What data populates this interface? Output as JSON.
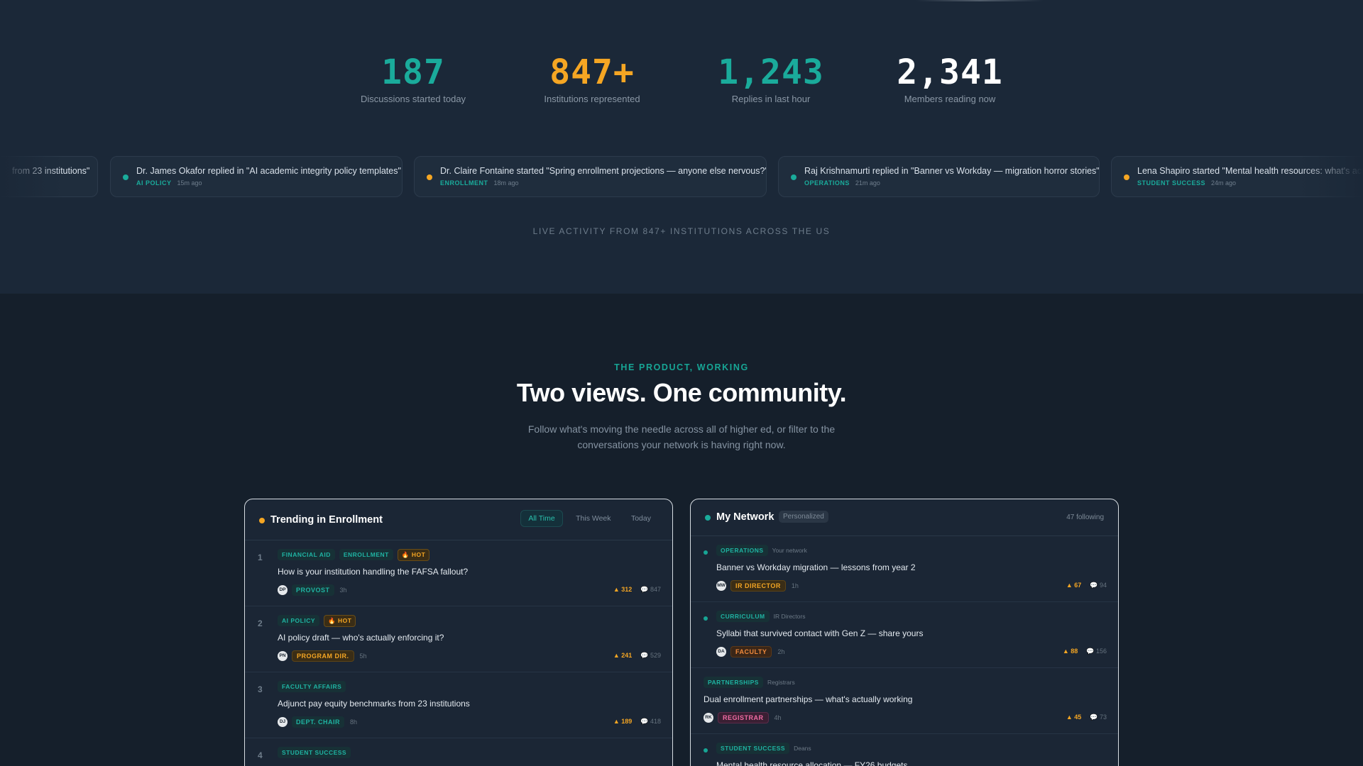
{
  "stats": [
    {
      "value": "187",
      "label": "Discussions started today",
      "color": "#1aab9b"
    },
    {
      "value": "847+",
      "label": "Institutions represented",
      "color": "#f5a623"
    },
    {
      "value": "1,243",
      "label": "Replies in last hour",
      "color": "#1aab9b"
    },
    {
      "value": "2,341",
      "label": "Members reading now",
      "color": "#ffffff"
    }
  ],
  "ticker": [
    {
      "text": "from 23 institutions\"",
      "category": "",
      "time": "",
      "dot": ""
    },
    {
      "text": "Dr. James Okafor replied in \"AI academic integrity policy templates\"",
      "category": "AI POLICY",
      "time": "15m ago",
      "dot": "#1aab9b"
    },
    {
      "text": "Dr. Claire Fontaine started \"Spring enrollment projections — anyone else nervous?\"",
      "category": "ENROLLMENT",
      "time": "18m ago",
      "dot": "#f5a623"
    },
    {
      "text": "Raj Krishnamurti replied in \"Banner vs Workday — migration horror stories\"",
      "category": "OPERATIONS",
      "time": "21m ago",
      "dot": "#1aab9b"
    },
    {
      "text": "Lena Shapiro started \"Mental health resources: what's acti",
      "category": "STUDENT SUCCESS",
      "time": "24m ago",
      "dot": "#f5a623"
    }
  ],
  "live_caption": "LIVE ACTIVITY FROM 847+ INSTITUTIONS ACROSS THE US",
  "section": {
    "eyebrow": "THE PRODUCT, WORKING",
    "headline": "Two views. One community.",
    "subtext": "Follow what's moving the needle across all of higher ed, or filter to the conversations your network is having right now."
  },
  "trending": {
    "title": "Trending in Enrollment",
    "tabs": [
      "All Time",
      "This Week",
      "Today"
    ],
    "active_tab": "All Time",
    "items": [
      {
        "rank": "1",
        "tags": [
          "FINANCIAL AID",
          "ENROLLMENT"
        ],
        "hot": "🔥 HOT",
        "title": "How is your institution handling the FAFSA fallout?",
        "initials": "DP",
        "role": "PROVOST",
        "role_style": "teal",
        "time": "3h",
        "upvotes": "▲ 312",
        "comments": "💬 847"
      },
      {
        "rank": "2",
        "tags": [
          "AI POLICY"
        ],
        "hot": "🔥 HOT",
        "title": "AI policy draft — who's actually enforcing it?",
        "initials": "PN",
        "role": "PROGRAM DIR.",
        "role_style": "amber",
        "time": "5h",
        "upvotes": "▲ 241",
        "comments": "💬 529"
      },
      {
        "rank": "3",
        "tags": [
          "FACULTY AFFAIRS"
        ],
        "hot": "",
        "title": "Adjunct pay equity benchmarks from 23 institutions",
        "initials": "DJ",
        "role": "DEPT. CHAIR",
        "role_style": "teal",
        "time": "8h",
        "upvotes": "▲ 189",
        "comments": "💬 418"
      },
      {
        "rank": "4",
        "tags": [
          "STUDENT SUCCESS"
        ],
        "hot": "",
        "title": "",
        "initials": "",
        "role": "",
        "role_style": "teal",
        "time": "",
        "upvotes": "",
        "comments": ""
      }
    ]
  },
  "network": {
    "title": "My Network",
    "badge": "Personalized",
    "following": "47 following",
    "items": [
      {
        "unread": true,
        "tag": "OPERATIONS",
        "source": "Your network",
        "title": "Banner vs Workday migration — lessons from year 2",
        "initials": "MW",
        "role": "IR DIRECTOR",
        "role_style": "amber",
        "time": "1h",
        "upvotes": "▲ 67",
        "comments": "💬 94"
      },
      {
        "unread": true,
        "tag": "CURRICULUM",
        "source": "IR Directors",
        "title": "Syllabi that survived contact with Gen Z — share yours",
        "initials": "DA",
        "role": "FACULTY",
        "role_style": "amber",
        "time": "2h",
        "upvotes": "▲ 88",
        "comments": "💬 156"
      },
      {
        "unread": false,
        "tag": "PARTNERSHIPS",
        "source": "Registrars",
        "title": "Dual enrollment partnerships — what's actually working",
        "initials": "RK",
        "role": "REGISTRAR",
        "role_style": "pink",
        "time": "4h",
        "upvotes": "▲ 45",
        "comments": "💬 73"
      },
      {
        "unread": true,
        "tag": "STUDENT SUCCESS",
        "source": "Deans",
        "title": "Mental health resource allocation — FY26 budgets",
        "initials": "",
        "role": "",
        "role_style": "teal",
        "time": "",
        "upvotes": "",
        "comments": ""
      }
    ]
  }
}
